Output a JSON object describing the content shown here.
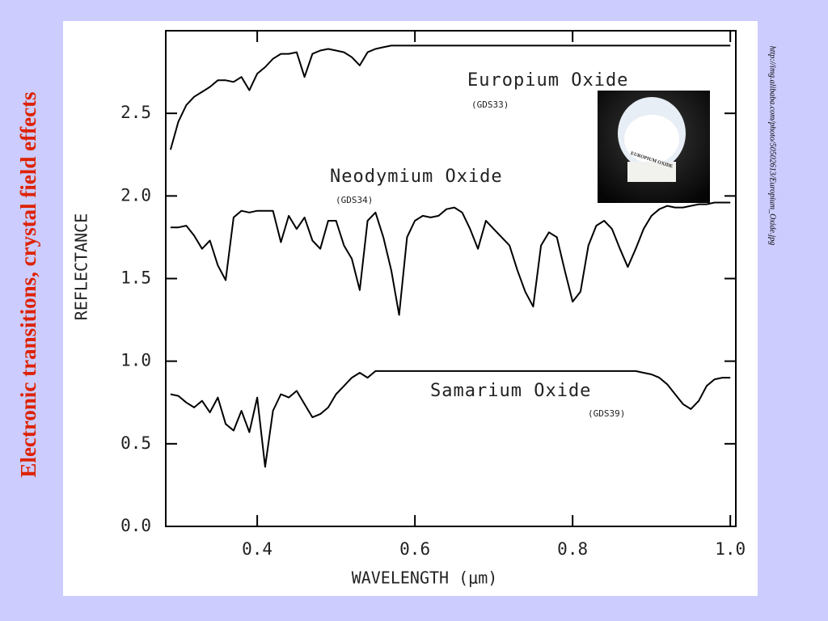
{
  "slide_title": "Electronic transitions, crystal field effects",
  "source_url": "http://img.alibaba.com/photo/50502613/Europium_Oxide.jpg",
  "photo_label": "EUROPIUM OXIDE",
  "chart_data": {
    "type": "line",
    "xlabel": "WAVELENGTH (μm)",
    "ylabel": "REFLECTANCE",
    "xlim": [
      0.284,
      1.007
    ],
    "ylim": [
      0,
      3.0
    ],
    "xticks": [
      0.4,
      0.6,
      0.8,
      {
        "value": 1,
        "label": "1.0"
      }
    ],
    "yticks": [
      {
        "value": 0,
        "label": "0.0"
      },
      0.5,
      {
        "value": 1,
        "label": "1.0"
      },
      1.5,
      {
        "value": 2,
        "label": "2.0"
      },
      2.5
    ],
    "annotations": [
      "Europium Oxide",
      "(GDS33)",
      "Neodymium Oxide",
      "(GDS34)",
      "Samarium Oxide",
      "(GDS39)"
    ],
    "x": [
      0.29,
      0.3,
      0.31,
      0.32,
      0.33,
      0.34,
      0.35,
      0.36,
      0.37,
      0.38,
      0.39,
      0.4,
      0.41,
      0.42,
      0.43,
      0.44,
      0.45,
      0.46,
      0.47,
      0.48,
      0.49,
      0.5,
      0.51,
      0.52,
      0.53,
      0.54,
      0.55,
      0.56,
      0.57,
      0.58,
      0.59,
      0.6,
      0.61,
      0.62,
      0.63,
      0.64,
      0.65,
      0.66,
      0.67,
      0.68,
      0.69,
      0.7,
      0.71,
      0.72,
      0.73,
      0.74,
      0.75,
      0.76,
      0.77,
      0.78,
      0.79,
      0.8,
      0.81,
      0.82,
      0.83,
      0.84,
      0.85,
      0.86,
      0.87,
      0.88,
      0.89,
      0.9,
      0.91,
      0.92,
      0.93,
      0.94,
      0.95,
      0.96,
      0.97,
      0.98,
      0.99,
      1.0
    ],
    "series": [
      {
        "name": "Europium Oxide",
        "color": "#000000",
        "values": [
          2.28,
          2.45,
          2.55,
          2.6,
          2.63,
          2.66,
          2.7,
          2.7,
          2.69,
          2.72,
          2.64,
          2.74,
          2.78,
          2.83,
          2.86,
          2.86,
          2.87,
          2.72,
          2.86,
          2.88,
          2.89,
          2.88,
          2.87,
          2.84,
          2.79,
          2.87,
          2.89,
          2.9,
          2.91,
          2.91,
          2.91,
          2.91,
          2.91,
          2.91,
          2.91,
          2.91,
          2.91,
          2.91,
          2.91,
          2.91,
          2.91,
          2.91,
          2.91,
          2.91,
          2.91,
          2.91,
          2.91,
          2.91,
          2.91,
          2.91,
          2.91,
          2.91,
          2.91,
          2.91,
          2.91,
          2.91,
          2.91,
          2.91,
          2.91,
          2.91,
          2.91,
          2.91,
          2.91,
          2.91,
          2.91,
          2.91,
          2.91,
          2.91,
          2.91,
          2.91,
          2.91,
          2.91
        ]
      },
      {
        "name": "Neodymium Oxide",
        "color": "#000000",
        "values": [
          1.81,
          1.81,
          1.82,
          1.76,
          1.68,
          1.73,
          1.58,
          1.49,
          1.87,
          1.91,
          1.9,
          1.91,
          1.91,
          1.91,
          1.72,
          1.88,
          1.8,
          1.87,
          1.73,
          1.68,
          1.85,
          1.85,
          1.7,
          1.62,
          1.43,
          1.85,
          1.9,
          1.75,
          1.55,
          1.28,
          1.75,
          1.85,
          1.88,
          1.87,
          1.88,
          1.92,
          1.93,
          1.9,
          1.8,
          1.68,
          1.85,
          1.8,
          1.75,
          1.7,
          1.55,
          1.42,
          1.33,
          1.7,
          1.78,
          1.75,
          1.55,
          1.36,
          1.42,
          1.7,
          1.82,
          1.85,
          1.8,
          1.68,
          1.57,
          1.68,
          1.8,
          1.88,
          1.92,
          1.94,
          1.93,
          1.93,
          1.94,
          1.95,
          1.95,
          1.96,
          1.96,
          1.96
        ]
      },
      {
        "name": "Samarium Oxide",
        "color": "#000000",
        "values": [
          0.8,
          0.79,
          0.75,
          0.72,
          0.76,
          0.69,
          0.78,
          0.62,
          0.58,
          0.7,
          0.57,
          0.78,
          0.36,
          0.7,
          0.8,
          0.78,
          0.82,
          0.74,
          0.66,
          0.68,
          0.72,
          0.8,
          0.85,
          0.9,
          0.93,
          0.9,
          0.94,
          0.94,
          0.94,
          0.94,
          0.94,
          0.94,
          0.94,
          0.94,
          0.94,
          0.94,
          0.94,
          0.94,
          0.94,
          0.94,
          0.94,
          0.94,
          0.94,
          0.94,
          0.94,
          0.94,
          0.94,
          0.94,
          0.94,
          0.94,
          0.94,
          0.94,
          0.94,
          0.94,
          0.94,
          0.94,
          0.94,
          0.94,
          0.94,
          0.94,
          0.93,
          0.92,
          0.9,
          0.86,
          0.8,
          0.74,
          0.71,
          0.76,
          0.85,
          0.89,
          0.9,
          0.9
        ]
      }
    ]
  }
}
